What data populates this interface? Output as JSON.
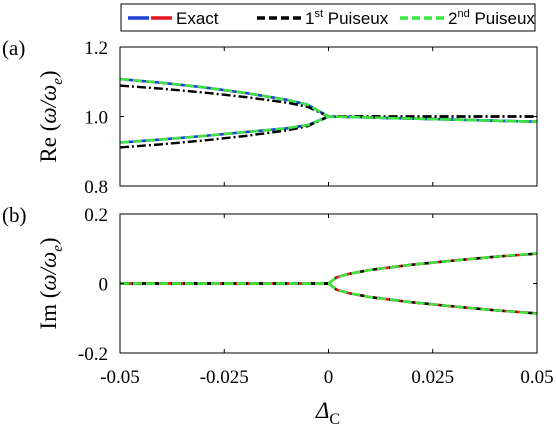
{
  "legend": {
    "items": [
      {
        "name": "exact",
        "text": "Exact",
        "sup": "",
        "colors": [
          "#1f3fd6",
          "#e8141e"
        ],
        "dash": ""
      },
      {
        "name": "puiseux-1",
        "text": " Puiseux",
        "prefix": "1",
        "sup": "st",
        "colors": [
          "#000000"
        ],
        "dash": "8,4"
      },
      {
        "name": "puiseux-2",
        "text": " Puiseux",
        "prefix": "2",
        "sup": "nd",
        "colors": [
          "#3ce83c"
        ],
        "dash": "8,4"
      }
    ]
  },
  "xlabel": {
    "main": "Δ",
    "sub": "C"
  },
  "chart_data": [
    {
      "type": "line",
      "panel_label": "(a)",
      "ylabel": {
        "prefix": "Re (",
        "main": "ω/ω",
        "sub": "e",
        "suffix": ")"
      },
      "xlim": [
        -0.05,
        0.05
      ],
      "ylim": [
        0.8,
        1.2
      ],
      "x_ticks": [
        -0.05,
        -0.025,
        0,
        0.025,
        0.05
      ],
      "x_tick_labels": [],
      "y_ticks": [
        0.8,
        1.0,
        1.2
      ],
      "y_tick_labels": [
        "0.8",
        "1.0",
        "1.2"
      ],
      "series": [
        {
          "name": "Exact",
          "color": "#1f3fd6",
          "x": [
            -0.05,
            -0.04,
            -0.03,
            -0.02,
            -0.01,
            -0.005,
            0,
            0.01,
            0.02,
            0.03,
            0.04,
            0.05
          ],
          "y_upper": [
            1.108,
            1.097,
            1.084,
            1.068,
            1.048,
            1.034,
            1.0,
            0.997,
            0.994,
            0.991,
            0.988,
            0.985
          ],
          "y_lower": [
            0.925,
            0.934,
            0.944,
            0.955,
            0.966,
            0.975,
            1.0,
            0.997,
            0.994,
            0.991,
            0.988,
            0.985
          ]
        },
        {
          "name": "1st Puiseux",
          "color": "#000000",
          "x": [
            -0.05,
            -0.04,
            -0.03,
            -0.02,
            -0.01,
            -0.005,
            0,
            0.01,
            0.02,
            0.03,
            0.04,
            0.05
          ],
          "y_upper": [
            1.089,
            1.08,
            1.069,
            1.056,
            1.04,
            1.028,
            1.0,
            1.0,
            1.0,
            1.0,
            1.0,
            1.0
          ],
          "y_lower": [
            0.911,
            0.92,
            0.931,
            0.944,
            0.96,
            0.972,
            1.0,
            1.0,
            1.0,
            1.0,
            1.0,
            1.0
          ]
        },
        {
          "name": "2nd Puiseux",
          "color": "#3ce83c",
          "x": [
            -0.05,
            -0.04,
            -0.03,
            -0.02,
            -0.01,
            -0.005,
            0,
            0.01,
            0.02,
            0.03,
            0.04,
            0.05
          ],
          "y_upper": [
            1.108,
            1.097,
            1.084,
            1.068,
            1.048,
            1.034,
            1.0,
            0.997,
            0.994,
            0.991,
            0.988,
            0.985
          ],
          "y_lower": [
            0.925,
            0.934,
            0.944,
            0.955,
            0.966,
            0.975,
            1.0,
            0.997,
            0.994,
            0.991,
            0.988,
            0.985
          ]
        }
      ]
    },
    {
      "type": "line",
      "panel_label": "(b)",
      "ylabel": {
        "prefix": "Im (",
        "main": "ω/ω",
        "sub": "e",
        "suffix": ")"
      },
      "xlim": [
        -0.05,
        0.05
      ],
      "ylim": [
        -0.2,
        0.2
      ],
      "x_ticks": [
        -0.05,
        -0.025,
        0,
        0.025,
        0.05
      ],
      "x_tick_labels": [
        "-0.05",
        "-0.025",
        "0",
        "0.025",
        "0.05"
      ],
      "y_ticks": [
        -0.2,
        0,
        0.2
      ],
      "y_tick_labels": [
        "-0.2",
        "0",
        "0.2"
      ],
      "series": [
        {
          "name": "Exact",
          "color": "#e8141e",
          "x": [
            -0.05,
            -0.03,
            -0.01,
            0,
            0.002,
            0.005,
            0.01,
            0.02,
            0.03,
            0.04,
            0.05
          ],
          "y_upper": [
            0,
            0,
            0,
            0,
            0.018,
            0.028,
            0.039,
            0.054,
            0.066,
            0.077,
            0.086
          ],
          "y_lower": [
            0,
            0,
            0,
            0,
            -0.018,
            -0.028,
            -0.039,
            -0.054,
            -0.066,
            -0.077,
            -0.086
          ]
        },
        {
          "name": "1st Puiseux",
          "color": "#000000",
          "x": [
            -0.05,
            -0.03,
            -0.01,
            0,
            0.002,
            0.005,
            0.01,
            0.02,
            0.03,
            0.04,
            0.05
          ],
          "y_upper": [
            0,
            0,
            0,
            0,
            0.018,
            0.028,
            0.039,
            0.054,
            0.066,
            0.077,
            0.086
          ],
          "y_lower": [
            0,
            0,
            0,
            0,
            -0.018,
            -0.028,
            -0.039,
            -0.054,
            -0.066,
            -0.077,
            -0.086
          ]
        },
        {
          "name": "2nd Puiseux",
          "color": "#3ce83c",
          "x": [
            -0.05,
            -0.03,
            -0.01,
            0,
            0.002,
            0.005,
            0.01,
            0.02,
            0.03,
            0.04,
            0.05
          ],
          "y_upper": [
            0,
            0,
            0,
            0,
            0.018,
            0.028,
            0.039,
            0.054,
            0.066,
            0.077,
            0.087
          ],
          "y_lower": [
            0,
            0,
            0,
            0,
            -0.018,
            -0.028,
            -0.039,
            -0.054,
            -0.066,
            -0.077,
            -0.087
          ]
        }
      ]
    }
  ]
}
